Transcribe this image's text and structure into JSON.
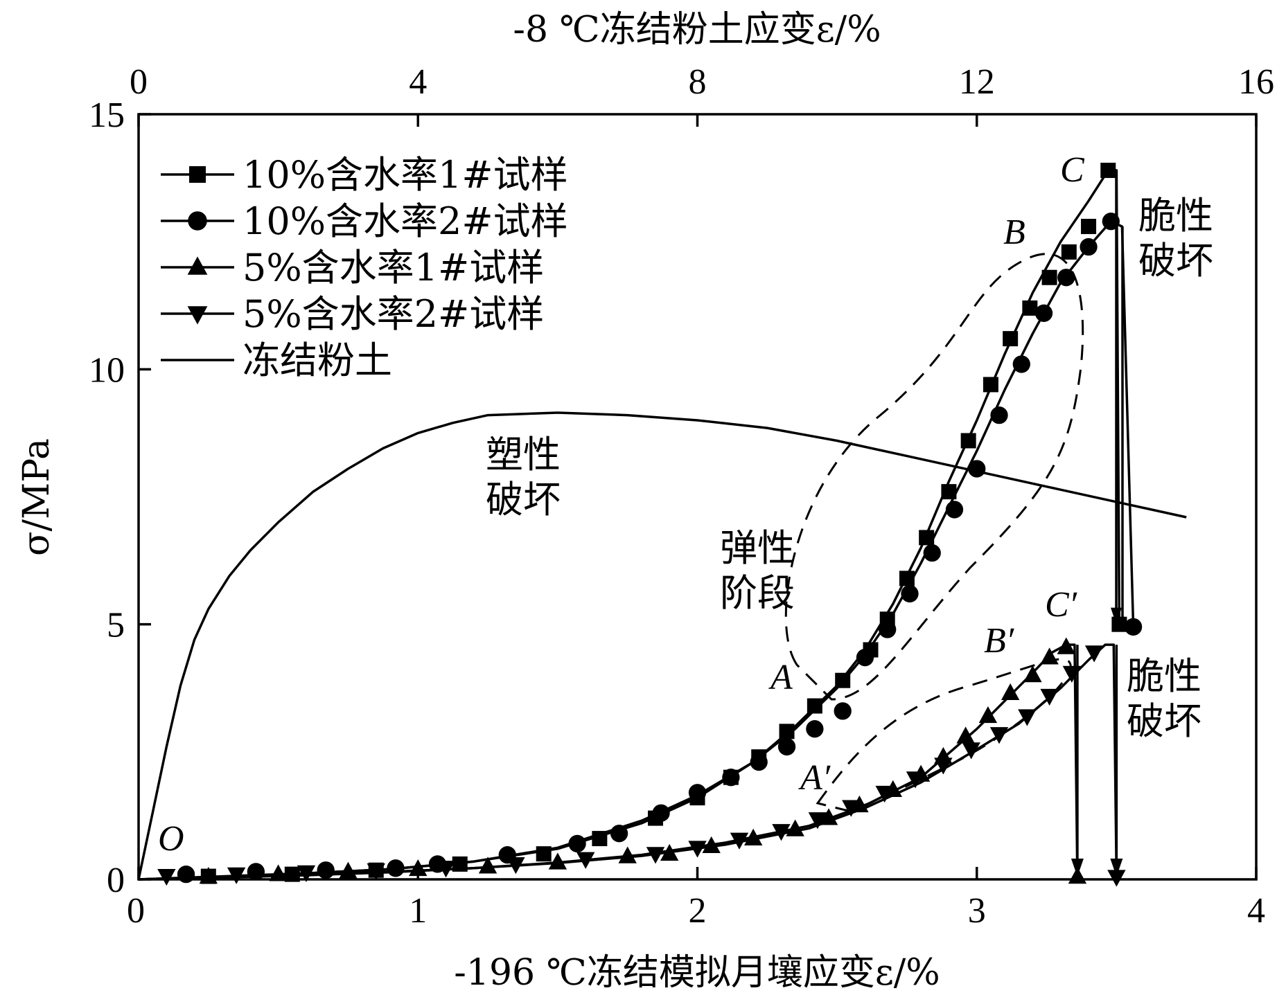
{
  "chart_data": {
    "type": "line",
    "title": "",
    "xlabel": "-196 ℃冻结模拟月壤应变ε/%",
    "x2label": "-8 ℃冻结粉土应变ε/%",
    "ylabel": "σ/MPa",
    "xlim": [
      0,
      4
    ],
    "x2lim": [
      0,
      16
    ],
    "ylim": [
      0,
      15
    ],
    "xticks": [
      "0",
      "1",
      "2",
      "3",
      "4"
    ],
    "x2ticks": [
      "0",
      "4",
      "8",
      "12",
      "16"
    ],
    "yticks": [
      "0",
      "5",
      "10",
      "15"
    ],
    "grid": false,
    "legend_position": "top-left",
    "series": [
      {
        "name": "10%含水率1#试样",
        "marker": "square",
        "axis": "bottom",
        "x": [
          0,
          0.3,
          0.6,
          0.9,
          1.2,
          1.5,
          1.8,
          2.0,
          2.2,
          2.35,
          2.5,
          2.6,
          2.7,
          2.8,
          2.9,
          3.0,
          3.1,
          3.2,
          3.3,
          3.4,
          3.47,
          3.5,
          3.51
        ],
        "y": [
          0,
          0.05,
          0.12,
          0.2,
          0.35,
          0.6,
          1.1,
          1.6,
          2.3,
          3.0,
          3.8,
          4.5,
          5.4,
          6.5,
          7.8,
          9.0,
          10.3,
          11.5,
          12.5,
          13.3,
          13.9,
          13.9,
          5.0
        ],
        "markers_x": [
          0.25,
          0.55,
          0.85,
          1.15,
          1.45,
          1.65,
          1.85,
          2.0,
          2.12,
          2.22,
          2.32,
          2.42,
          2.52,
          2.62,
          2.68,
          2.75,
          2.82,
          2.9,
          2.97,
          3.05,
          3.12,
          3.19,
          3.26,
          3.33,
          3.4,
          3.47,
          3.51
        ],
        "markers_y": [
          0.06,
          0.1,
          0.18,
          0.3,
          0.5,
          0.8,
          1.2,
          1.6,
          2.0,
          2.4,
          2.9,
          3.4,
          3.9,
          4.5,
          5.1,
          5.9,
          6.7,
          7.6,
          8.6,
          9.7,
          10.6,
          11.2,
          11.8,
          12.3,
          12.8,
          13.9,
          5.0
        ]
      },
      {
        "name": "10%含水率2#试样",
        "marker": "circle",
        "axis": "bottom",
        "x": [
          0,
          0.3,
          0.6,
          0.9,
          1.2,
          1.5,
          1.8,
          2.0,
          2.2,
          2.35,
          2.5,
          2.6,
          2.7,
          2.8,
          2.9,
          3.0,
          3.1,
          3.2,
          3.3,
          3.4,
          3.48,
          3.52,
          3.56
        ],
        "y": [
          0,
          0.06,
          0.12,
          0.2,
          0.35,
          0.62,
          1.15,
          1.65,
          2.3,
          2.95,
          3.75,
          4.4,
          5.2,
          6.2,
          7.3,
          8.4,
          9.6,
          10.7,
          11.7,
          12.4,
          12.9,
          12.8,
          4.95
        ],
        "markers_x": [
          0.17,
          0.42,
          0.67,
          0.92,
          1.07,
          1.32,
          1.57,
          1.72,
          1.87,
          2.0,
          2.12,
          2.22,
          2.32,
          2.42,
          2.52,
          2.6,
          2.68,
          2.76,
          2.84,
          2.92,
          3.0,
          3.08,
          3.16,
          3.24,
          3.32,
          3.4,
          3.48,
          3.56
        ],
        "markers_y": [
          0.1,
          0.15,
          0.18,
          0.22,
          0.3,
          0.48,
          0.7,
          0.9,
          1.3,
          1.7,
          2.0,
          2.3,
          2.6,
          2.95,
          3.3,
          4.35,
          4.9,
          5.6,
          6.4,
          7.25,
          8.05,
          9.1,
          10.1,
          11.1,
          11.8,
          12.4,
          12.9,
          4.95
        ]
      },
      {
        "name": "5%含水率1#试样",
        "marker": "triangle-up",
        "axis": "bottom",
        "x": [
          0,
          0.3,
          0.6,
          0.9,
          1.2,
          1.5,
          1.8,
          2.1,
          2.4,
          2.6,
          2.8,
          3.0,
          3.1,
          3.2,
          3.27,
          3.32,
          3.35,
          3.36
        ],
        "y": [
          0,
          0.04,
          0.08,
          0.14,
          0.22,
          0.33,
          0.48,
          0.72,
          1.05,
          1.45,
          2.0,
          2.95,
          3.5,
          4.05,
          4.45,
          4.6,
          4.6,
          0
        ],
        "markers_x": [
          0.25,
          0.5,
          0.75,
          1.0,
          1.25,
          1.5,
          1.75,
          1.9,
          2.05,
          2.2,
          2.35,
          2.47,
          2.58,
          2.7,
          2.8,
          2.88,
          2.96,
          3.04,
          3.12,
          3.2,
          3.26,
          3.32,
          3.36
        ],
        "markers_y": [
          0.05,
          0.1,
          0.15,
          0.2,
          0.25,
          0.33,
          0.45,
          0.5,
          0.65,
          0.8,
          0.98,
          1.2,
          1.45,
          1.75,
          2.05,
          2.4,
          2.8,
          3.2,
          3.65,
          4.0,
          4.35,
          4.55,
          0.05
        ]
      },
      {
        "name": "5%含水率2#试样",
        "marker": "triangle-down",
        "axis": "bottom",
        "x": [
          0,
          0.3,
          0.6,
          0.9,
          1.2,
          1.5,
          1.8,
          2.1,
          2.4,
          2.6,
          2.8,
          3.0,
          3.15,
          3.3,
          3.4,
          3.46,
          3.49,
          3.5
        ],
        "y": [
          0,
          0.05,
          0.09,
          0.15,
          0.22,
          0.32,
          0.46,
          0.68,
          1.0,
          1.4,
          1.9,
          2.55,
          3.05,
          3.75,
          4.3,
          4.6,
          4.6,
          0
        ],
        "markers_x": [
          0.1,
          0.35,
          0.6,
          0.85,
          1.1,
          1.35,
          1.6,
          1.85,
          2.0,
          2.15,
          2.3,
          2.43,
          2.55,
          2.67,
          2.78,
          2.88,
          2.98,
          3.08,
          3.18,
          3.26,
          3.34,
          3.42,
          3.5
        ],
        "markers_y": [
          0.07,
          0.1,
          0.14,
          0.18,
          0.23,
          0.3,
          0.4,
          0.5,
          0.62,
          0.78,
          0.95,
          1.18,
          1.42,
          1.7,
          1.98,
          2.25,
          2.55,
          2.85,
          3.2,
          3.6,
          4.05,
          4.45,
          0.05
        ]
      },
      {
        "name": "冻结粉土",
        "marker": "none",
        "axis": "top",
        "x": [
          0,
          0.2,
          0.4,
          0.6,
          0.8,
          1.0,
          1.3,
          1.6,
          2.0,
          2.5,
          3.0,
          3.5,
          4.0,
          4.5,
          5.0,
          6.0,
          7.0,
          8.0,
          9.0,
          10.0,
          11.0,
          12.0,
          13.0,
          14.0,
          15.0
        ],
        "y": [
          0,
          1.3,
          2.6,
          3.8,
          4.7,
          5.3,
          5.95,
          6.45,
          7.0,
          7.6,
          8.05,
          8.45,
          8.75,
          8.95,
          9.1,
          9.15,
          9.1,
          9.0,
          8.85,
          8.6,
          8.3,
          8.0,
          7.7,
          7.4,
          7.1
        ]
      }
    ],
    "annotations": [
      {
        "id": "plastic",
        "lines": [
          "塑性",
          "破坏"
        ]
      },
      {
        "id": "elastic",
        "lines": [
          "弹性",
          "阶段"
        ]
      },
      {
        "id": "brittle1",
        "lines": [
          "脆性",
          "破坏"
        ]
      },
      {
        "id": "brittle2",
        "lines": [
          "脆性",
          "破坏"
        ]
      }
    ],
    "point_labels": {
      "O": "O",
      "A": "A",
      "B": "B",
      "C": "C",
      "A2": "A′",
      "B2": "B′",
      "C2": "C′"
    }
  }
}
